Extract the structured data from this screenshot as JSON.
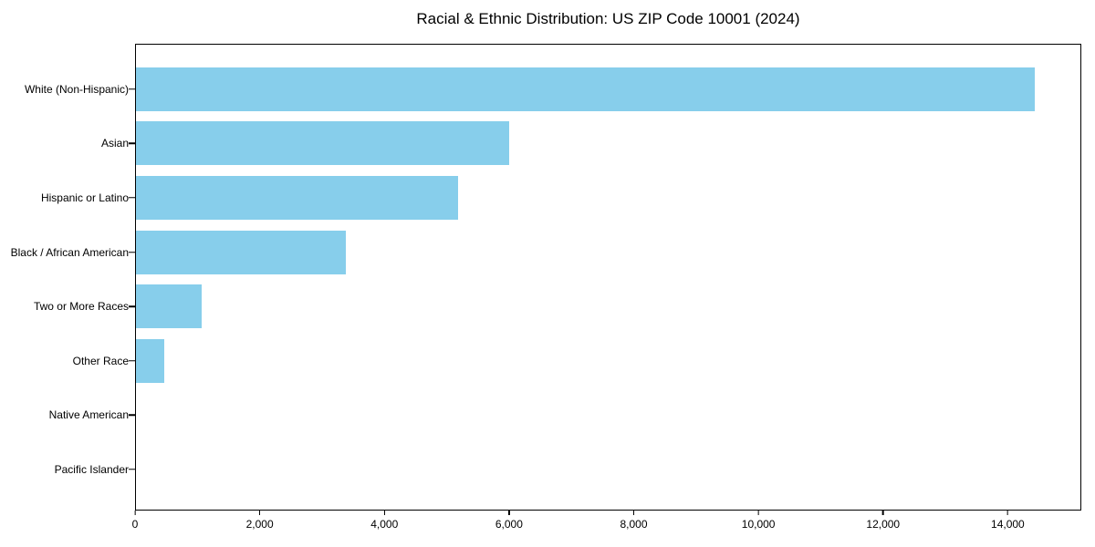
{
  "chart_data": {
    "type": "bar",
    "orientation": "horizontal",
    "title": "Racial & Ethnic Distribution: US ZIP Code 10001 (2024)",
    "categories": [
      "White (Non-Hispanic)",
      "Asian",
      "Hispanic or Latino",
      "Black / African American",
      "Two or More Races",
      "Other Race",
      "Native American",
      "Pacific Islander"
    ],
    "values": [
      14450,
      6000,
      5170,
      3370,
      1060,
      460,
      0,
      0
    ],
    "xlabel": "",
    "ylabel": "",
    "xlim": [
      0,
      15180
    ],
    "xticks": [
      0,
      2000,
      4000,
      6000,
      8000,
      10000,
      12000,
      14000
    ],
    "xtick_labels": [
      "0",
      "2,000",
      "4,000",
      "6,000",
      "8,000",
      "10,000",
      "12,000",
      "14,000"
    ],
    "bar_color": "#87CEEB",
    "frame_color": "#000000",
    "text_color": "#000000",
    "grid": false,
    "legend": null
  }
}
